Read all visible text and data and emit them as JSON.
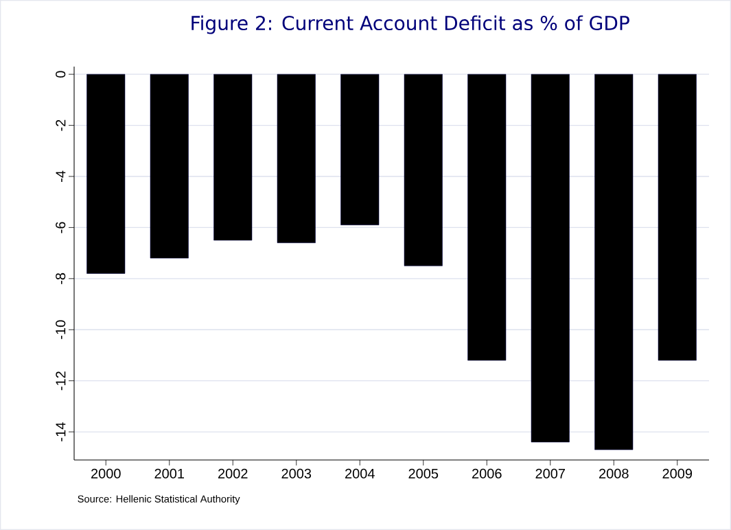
{
  "chart_data": {
    "type": "bar",
    "title": "Figure 2: Current Account Deficit as % of GDP",
    "categories": [
      "2000",
      "2001",
      "2002",
      "2003",
      "2004",
      "2005",
      "2006",
      "2007",
      "2008",
      "2009"
    ],
    "values": [
      -7.8,
      -7.2,
      -6.5,
      -6.6,
      -5.9,
      -7.5,
      -11.2,
      -14.4,
      -14.7,
      -11.2
    ],
    "color": "#000000",
    "ylim": [
      -15.1,
      0.3
    ],
    "yticks": [
      0,
      -2,
      -4,
      -6,
      -8,
      -10,
      -12,
      -14
    ],
    "grid": "y",
    "annotations": [
      "Source: Hellenic Statistical Authority"
    ]
  }
}
